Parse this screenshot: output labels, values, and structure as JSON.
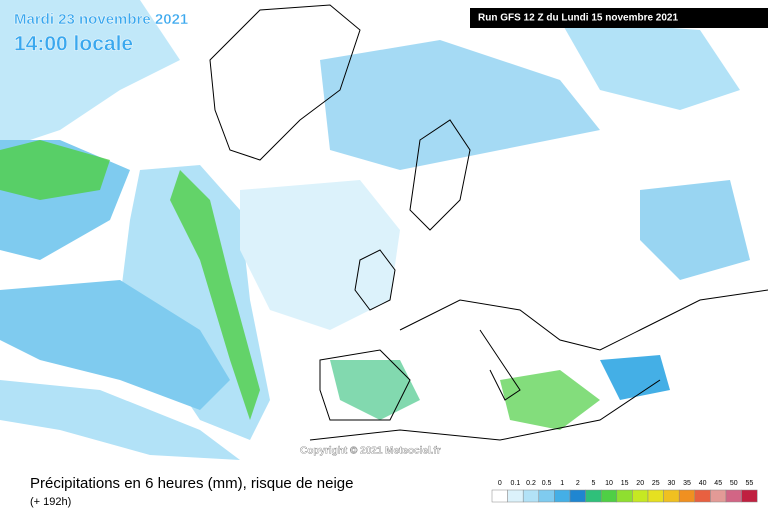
{
  "header": {
    "date": "Mardi 23 novembre 2021",
    "time": "14:00 locale",
    "run": "Run GFS 12 Z du Lundi 15 novembre 2021"
  },
  "copyright": "Copyright © 2021 Meteociel.fr",
  "footer": {
    "title": "Précipitations en 6 heures (mm), risque de neige",
    "lead": "(+ 192h)"
  },
  "legend": {
    "items": [
      {
        "value": 0,
        "color": "#ffffff"
      },
      {
        "value": 0.1,
        "color": "#dcf2fb"
      },
      {
        "value": 0.2,
        "color": "#b2e2f7"
      },
      {
        "value": 0.5,
        "color": "#7fcbef"
      },
      {
        "value": 1,
        "color": "#44afe6"
      },
      {
        "value": 2,
        "color": "#1f86d1"
      },
      {
        "value": 5,
        "color": "#2fc07a"
      },
      {
        "value": 10,
        "color": "#4fcf45"
      },
      {
        "value": 15,
        "color": "#8fdf30"
      },
      {
        "value": 20,
        "color": "#c6e822"
      },
      {
        "value": 25,
        "color": "#e6e020"
      },
      {
        "value": 30,
        "color": "#f0c020"
      },
      {
        "value": 35,
        "color": "#f09020"
      },
      {
        "value": 40,
        "color": "#e86040"
      },
      {
        "value": 45,
        "color": "#e39a96"
      },
      {
        "value": 50,
        "color": "#d26585"
      },
      {
        "value": 55,
        "color": "#c02040"
      }
    ]
  }
}
